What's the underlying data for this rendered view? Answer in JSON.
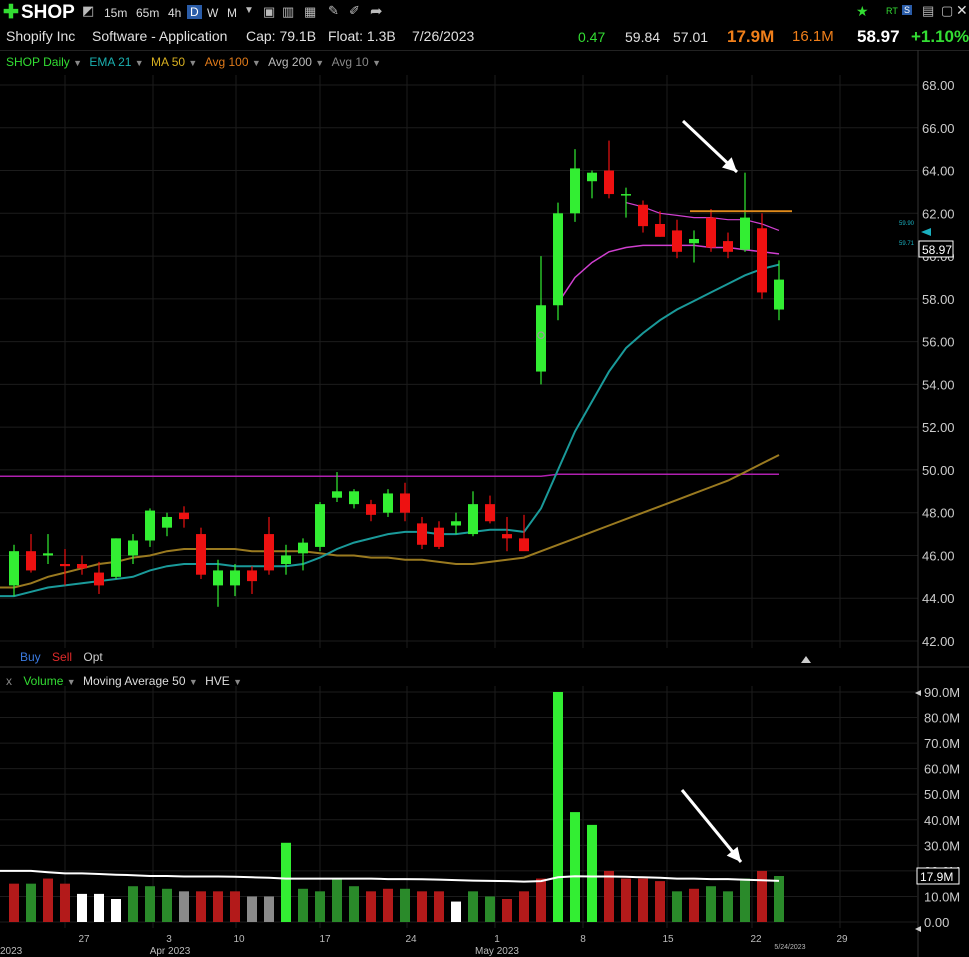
{
  "toolbar": {
    "symbol": "SHOP",
    "timeframes": [
      "15m",
      "65m",
      "4h",
      "D",
      "W",
      "M"
    ],
    "selected_timeframe": "D"
  },
  "header": {
    "company": "Shopify Inc",
    "industry": "Software - Application",
    "cap": "Cap: 79.1B",
    "float": "Float: 1.3B",
    "date": "7/26/2023",
    "change": "0.47",
    "high": "59.84",
    "low": "57.01",
    "volume": "17.9M",
    "avg_volume": "16.1M",
    "price": "58.97",
    "change_pct": "+1.10%"
  },
  "legend_price": {
    "symbol_label": "SHOP Daily",
    "ema21": "EMA 21",
    "ma50": "MA 50",
    "avg100": "Avg 100",
    "avg200": "Avg 200",
    "avg10": "Avg 10"
  },
  "order_buttons": {
    "buy": "Buy",
    "sell": "Sell",
    "opt": "Opt"
  },
  "legend_volume": {
    "close": "x",
    "volume": "Volume",
    "ma": "Moving Average 50",
    "hve": "HVE"
  },
  "colors": {
    "up": "#33ee33",
    "down": "#ee1111",
    "ema21": "#1a9a9a",
    "ma50": "#d040d0",
    "avg100": "#9a7a20",
    "avg200": "#b020b0",
    "resistance": "#e08a1a",
    "vol_up": "#2a8a2a",
    "vol_down": "#aa1a1a"
  },
  "price_labels": {
    "last": "58.97",
    "tag1": "59.90",
    "tag2": "59.71"
  },
  "volume_label": "17.9M",
  "chart_data": {
    "type": "candlestick",
    "y_ticks": [
      "68.00",
      "66.00",
      "64.00",
      "62.00",
      "60.00",
      "58.00",
      "56.00",
      "54.00",
      "52.00",
      "50.00",
      "48.00",
      "46.00",
      "44.00",
      "42.00"
    ],
    "ylim": [
      41.5,
      69
    ],
    "x_ticks": [
      "27",
      "3",
      "10",
      "17",
      "24",
      "1",
      "8",
      "15",
      "22",
      "29"
    ],
    "x_month_labels": [
      "Apr 2023",
      "May 2023",
      "2023"
    ],
    "x_date_label": "5/24/2023",
    "candles": [
      {
        "o": 44.6,
        "h": 46.5,
        "l": 44.1,
        "c": 46.2
      },
      {
        "o": 46.2,
        "h": 47.0,
        "l": 45.2,
        "c": 45.3
      },
      {
        "o": 46.0,
        "h": 47.0,
        "l": 45.6,
        "c": 46.1
      },
      {
        "o": 45.6,
        "h": 46.3,
        "l": 44.6,
        "c": 45.5
      },
      {
        "o": 45.6,
        "h": 46.0,
        "l": 45.1,
        "c": 45.4
      },
      {
        "o": 45.2,
        "h": 45.7,
        "l": 44.2,
        "c": 44.6
      },
      {
        "o": 45.0,
        "h": 46.8,
        "l": 44.9,
        "c": 46.8
      },
      {
        "o": 46.0,
        "h": 47.0,
        "l": 45.6,
        "c": 46.7
      },
      {
        "o": 46.7,
        "h": 48.2,
        "l": 46.4,
        "c": 48.1
      },
      {
        "o": 47.3,
        "h": 48.0,
        "l": 46.9,
        "c": 47.8
      },
      {
        "o": 48.0,
        "h": 48.3,
        "l": 47.3,
        "c": 47.7
      },
      {
        "o": 47.0,
        "h": 47.3,
        "l": 44.9,
        "c": 45.1
      },
      {
        "o": 44.6,
        "h": 45.8,
        "l": 43.6,
        "c": 45.3
      },
      {
        "o": 44.6,
        "h": 45.6,
        "l": 44.1,
        "c": 45.3
      },
      {
        "o": 45.3,
        "h": 45.5,
        "l": 44.2,
        "c": 44.8
      },
      {
        "o": 47.0,
        "h": 47.8,
        "l": 45.1,
        "c": 45.3
      },
      {
        "o": 45.6,
        "h": 46.5,
        "l": 45.1,
        "c": 46.0
      },
      {
        "o": 46.1,
        "h": 46.8,
        "l": 45.3,
        "c": 46.6
      },
      {
        "o": 46.4,
        "h": 48.5,
        "l": 46.2,
        "c": 48.4
      },
      {
        "o": 48.7,
        "h": 49.9,
        "l": 48.5,
        "c": 49.0
      },
      {
        "o": 48.4,
        "h": 49.1,
        "l": 48.2,
        "c": 49.0
      },
      {
        "o": 48.4,
        "h": 48.6,
        "l": 47.6,
        "c": 47.9
      },
      {
        "o": 48.0,
        "h": 49.1,
        "l": 47.8,
        "c": 48.9
      },
      {
        "o": 48.9,
        "h": 49.4,
        "l": 47.6,
        "c": 48.0
      },
      {
        "o": 47.5,
        "h": 47.8,
        "l": 46.3,
        "c": 46.5
      },
      {
        "o": 47.3,
        "h": 47.6,
        "l": 46.3,
        "c": 46.4
      },
      {
        "o": 47.4,
        "h": 48.0,
        "l": 47.0,
        "c": 47.6
      },
      {
        "o": 47.0,
        "h": 49.0,
        "l": 46.9,
        "c": 48.4
      },
      {
        "o": 48.4,
        "h": 48.8,
        "l": 47.5,
        "c": 47.6
      },
      {
        "o": 47.0,
        "h": 47.8,
        "l": 46.2,
        "c": 46.8
      },
      {
        "o": 46.8,
        "h": 47.9,
        "l": 46.3,
        "c": 46.2
      },
      {
        "o": 54.6,
        "h": 60.0,
        "l": 54.0,
        "c": 57.7
      },
      {
        "o": 57.7,
        "h": 62.5,
        "l": 57.0,
        "c": 62.0
      },
      {
        "o": 62.0,
        "h": 65.0,
        "l": 61.6,
        "c": 64.1
      },
      {
        "o": 63.5,
        "h": 64.0,
        "l": 62.7,
        "c": 63.9
      },
      {
        "o": 64.0,
        "h": 65.4,
        "l": 62.7,
        "c": 62.9
      },
      {
        "o": 62.9,
        "h": 63.2,
        "l": 61.8,
        "c": 62.9
      },
      {
        "o": 62.4,
        "h": 62.6,
        "l": 61.1,
        "c": 61.4
      },
      {
        "o": 61.5,
        "h": 62.1,
        "l": 60.9,
        "c": 60.9
      },
      {
        "o": 61.2,
        "h": 61.7,
        "l": 59.9,
        "c": 60.2
      },
      {
        "o": 60.6,
        "h": 61.2,
        "l": 59.7,
        "c": 60.8
      },
      {
        "o": 61.8,
        "h": 62.2,
        "l": 60.2,
        "c": 60.4
      },
      {
        "o": 60.7,
        "h": 61.1,
        "l": 59.9,
        "c": 60.2
      },
      {
        "o": 60.3,
        "h": 63.9,
        "l": 60.2,
        "c": 61.8
      },
      {
        "o": 61.3,
        "h": 62.0,
        "l": 58.0,
        "c": 58.3
      },
      {
        "o": 57.5,
        "h": 59.8,
        "l": 57.0,
        "c": 58.9
      }
    ],
    "ema21": [
      44.1,
      44.3,
      44.5,
      44.6,
      44.7,
      44.8,
      44.9,
      45.0,
      45.3,
      45.5,
      45.6,
      45.6,
      45.6,
      45.5,
      45.5,
      45.5,
      45.5,
      45.6,
      45.9,
      46.3,
      46.6,
      46.8,
      47.0,
      47.1,
      47.1,
      47.0,
      47.0,
      47.1,
      47.2,
      47.2,
      47.1,
      48.2,
      50.0,
      51.8,
      53.2,
      54.6,
      55.7,
      56.4,
      57.0,
      57.5,
      57.9,
      58.3,
      58.7,
      59.1,
      59.4,
      59.6
    ],
    "ma50": [
      null,
      null,
      null,
      null,
      null,
      null,
      null,
      null,
      null,
      null,
      null,
      null,
      null,
      null,
      null,
      null,
      null,
      null,
      null,
      null,
      null,
      null,
      null,
      null,
      null,
      null,
      null,
      null,
      null,
      null,
      null,
      null,
      57.8,
      59.0,
      59.7,
      60.2,
      60.4,
      60.5,
      60.5,
      60.5,
      60.5,
      60.4,
      60.4,
      60.3,
      60.2,
      60.1
    ],
    "ma50_short": [
      null,
      null,
      null,
      null,
      null,
      null,
      null,
      null,
      null,
      null,
      null,
      null,
      null,
      null,
      null,
      null,
      null,
      null,
      null,
      null,
      null,
      null,
      null,
      null,
      null,
      null,
      null,
      null,
      null,
      null,
      null,
      null,
      null,
      null,
      null,
      null,
      62.5,
      62.3,
      62.0,
      61.9,
      61.8,
      61.8,
      61.7,
      61.7,
      61.5,
      61.2
    ],
    "avg100": [
      44.5,
      44.7,
      45.0,
      45.2,
      45.4,
      45.6,
      45.7,
      45.9,
      46.0,
      46.2,
      46.3,
      46.3,
      46.3,
      46.3,
      46.2,
      46.2,
      46.2,
      46.2,
      46.1,
      46.0,
      46.0,
      45.9,
      45.9,
      45.8,
      45.8,
      45.7,
      45.6,
      45.6,
      45.7,
      45.8,
      45.9,
      46.2,
      46.5,
      46.8,
      47.1,
      47.4,
      47.7,
      48.0,
      48.3,
      48.6,
      48.9,
      49.2,
      49.5,
      49.9,
      50.3,
      50.7
    ],
    "avg200": [
      49.7,
      49.7,
      49.7,
      49.7,
      49.7,
      49.7,
      49.7,
      49.7,
      49.7,
      49.7,
      49.7,
      49.7,
      49.7,
      49.7,
      49.7,
      49.7,
      49.7,
      49.7,
      49.7,
      49.7,
      49.7,
      49.7,
      49.7,
      49.7,
      49.7,
      49.7,
      49.7,
      49.7,
      49.7,
      49.7,
      49.7,
      49.7,
      49.8,
      49.8,
      49.8,
      49.8,
      49.8,
      49.8,
      49.8,
      49.8,
      49.8,
      49.8,
      49.8,
      49.8,
      49.8,
      49.8
    ],
    "resistance": {
      "value": 62.1,
      "from_index": 40,
      "to_index": 46
    },
    "volume": {
      "y_ticks": [
        "90.0M",
        "80.0M",
        "70.0M",
        "60.0M",
        "50.0M",
        "40.0M",
        "30.0M",
        "20.0M",
        "10.0M",
        "0.00"
      ],
      "ylim": [
        0,
        92
      ],
      "values": [
        15,
        15,
        17,
        15,
        11,
        11,
        9,
        14,
        14,
        13,
        12,
        12,
        12,
        12,
        10,
        10,
        31,
        13,
        12,
        17,
        14,
        12,
        13,
        13,
        12,
        12,
        8,
        12,
        10,
        9,
        12,
        17,
        90,
        43,
        38,
        20,
        17,
        17,
        16,
        12,
        13,
        14,
        12,
        17,
        20,
        18
      ],
      "colors": [
        "down",
        "up",
        "down",
        "down",
        "neutral",
        "neutral",
        "neutral",
        "up",
        "up",
        "up",
        "grey",
        "down",
        "down",
        "down",
        "grey",
        "grey",
        "bright",
        "up",
        "up",
        "up",
        "up",
        "down",
        "down",
        "up",
        "down",
        "down",
        "neutral",
        "up",
        "up",
        "down",
        "down",
        "down",
        "bright",
        "bright",
        "bright",
        "down",
        "down",
        "down",
        "down",
        "up",
        "down",
        "up",
        "up",
        "up",
        "down",
        "up"
      ],
      "ma50": [
        20,
        20,
        19.5,
        19,
        19,
        18.8,
        18.5,
        18.3,
        18.0,
        18.0,
        17.8,
        17.8,
        17.8,
        17.7,
        17.5,
        17.3,
        17.0,
        17.0,
        17.0,
        17.0,
        17.0,
        17.0,
        16.8,
        16.8,
        16.7,
        16.6,
        16.4,
        16.2,
        16.1,
        16.0,
        15.8,
        16.0,
        17.5,
        17.9,
        17.8,
        17.8,
        17.7,
        17.5,
        17.3,
        17.0,
        17.0,
        16.8,
        16.8,
        16.5,
        16.3,
        16.1
      ]
    }
  }
}
